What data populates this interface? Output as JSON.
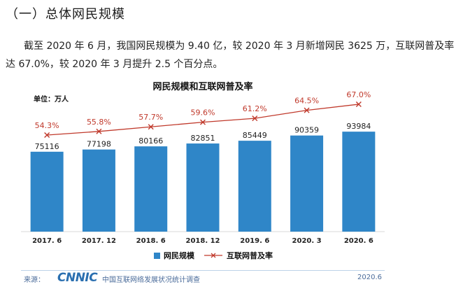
{
  "heading": "（一）总体网民规模",
  "paragraph": "截至 2020 年 6 月，我国网民规模为 9.40 亿，较 2020 年 3 月新增网民 3625 万，互联网普及率达 67.0%，较 2020 年 3 月提升 2.5 个百分点。",
  "chart_data": {
    "type": "bar",
    "title": "网民规模和互联网普及率",
    "unit_label": "单位：万人",
    "categories": [
      "2017. 6",
      "2017. 12",
      "2018. 6",
      "2018. 12",
      "2019. 6",
      "2020. 3",
      "2020. 6"
    ],
    "series": [
      {
        "name": "网民规模",
        "kind": "bar",
        "color": "#2f86c8",
        "values": [
          75116,
          77198,
          80166,
          82851,
          85449,
          90359,
          93984
        ]
      },
      {
        "name": "互联网普及率",
        "kind": "line",
        "color": "#c0392b",
        "values": [
          54.3,
          55.8,
          57.7,
          59.6,
          61.2,
          64.5,
          67.0
        ],
        "labels": [
          "54.3%",
          "55.8%",
          "57.7%",
          "59.6%",
          "61.2%",
          "64.5%",
          "67.0%"
        ]
      }
    ],
    "legend_position": "bottom"
  },
  "footer": {
    "source_label": "来源：",
    "logo_text": "CNNIC",
    "source_text": "中国互联网络发展状况统计调查",
    "date": "2020.6"
  }
}
